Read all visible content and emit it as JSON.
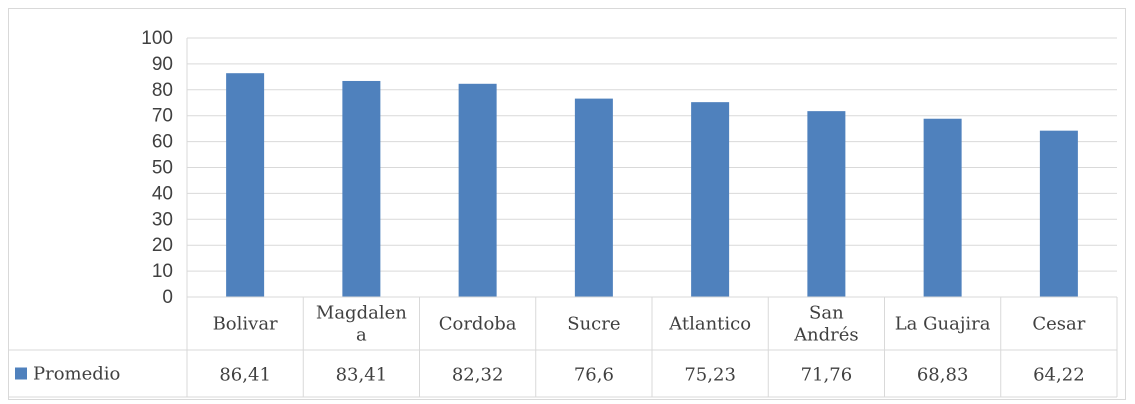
{
  "chart_data": {
    "type": "bar",
    "categories": [
      "Bolivar",
      "Magdalena",
      "Cordoba",
      "Sucre",
      "Atlantico",
      "San Andrés",
      "La Guajira",
      "Cesar"
    ],
    "category_labels": [
      [
        "Bolivar"
      ],
      [
        "Magdalen",
        "a"
      ],
      [
        "Cordoba"
      ],
      [
        "Sucre"
      ],
      [
        "Atlantico"
      ],
      [
        "San",
        "Andrés"
      ],
      [
        "La Guajira"
      ],
      [
        "Cesar"
      ]
    ],
    "series": [
      {
        "name": "Promedio",
        "values": [
          86.41,
          83.41,
          82.32,
          76.6,
          75.23,
          71.76,
          68.83,
          64.22
        ],
        "value_labels": [
          "86,41",
          "83,41",
          "82,32",
          "76,6",
          "75,23",
          "71,76",
          "68,83",
          "64,22"
        ],
        "color": "#4f81bd"
      }
    ],
    "ylim": [
      0,
      100
    ],
    "yticks": [
      "0",
      "10",
      "20",
      "30",
      "40",
      "50",
      "60",
      "70",
      "80",
      "90",
      "100"
    ],
    "grid": true,
    "data_table": true,
    "gridline_color": "#d9d9d9"
  }
}
